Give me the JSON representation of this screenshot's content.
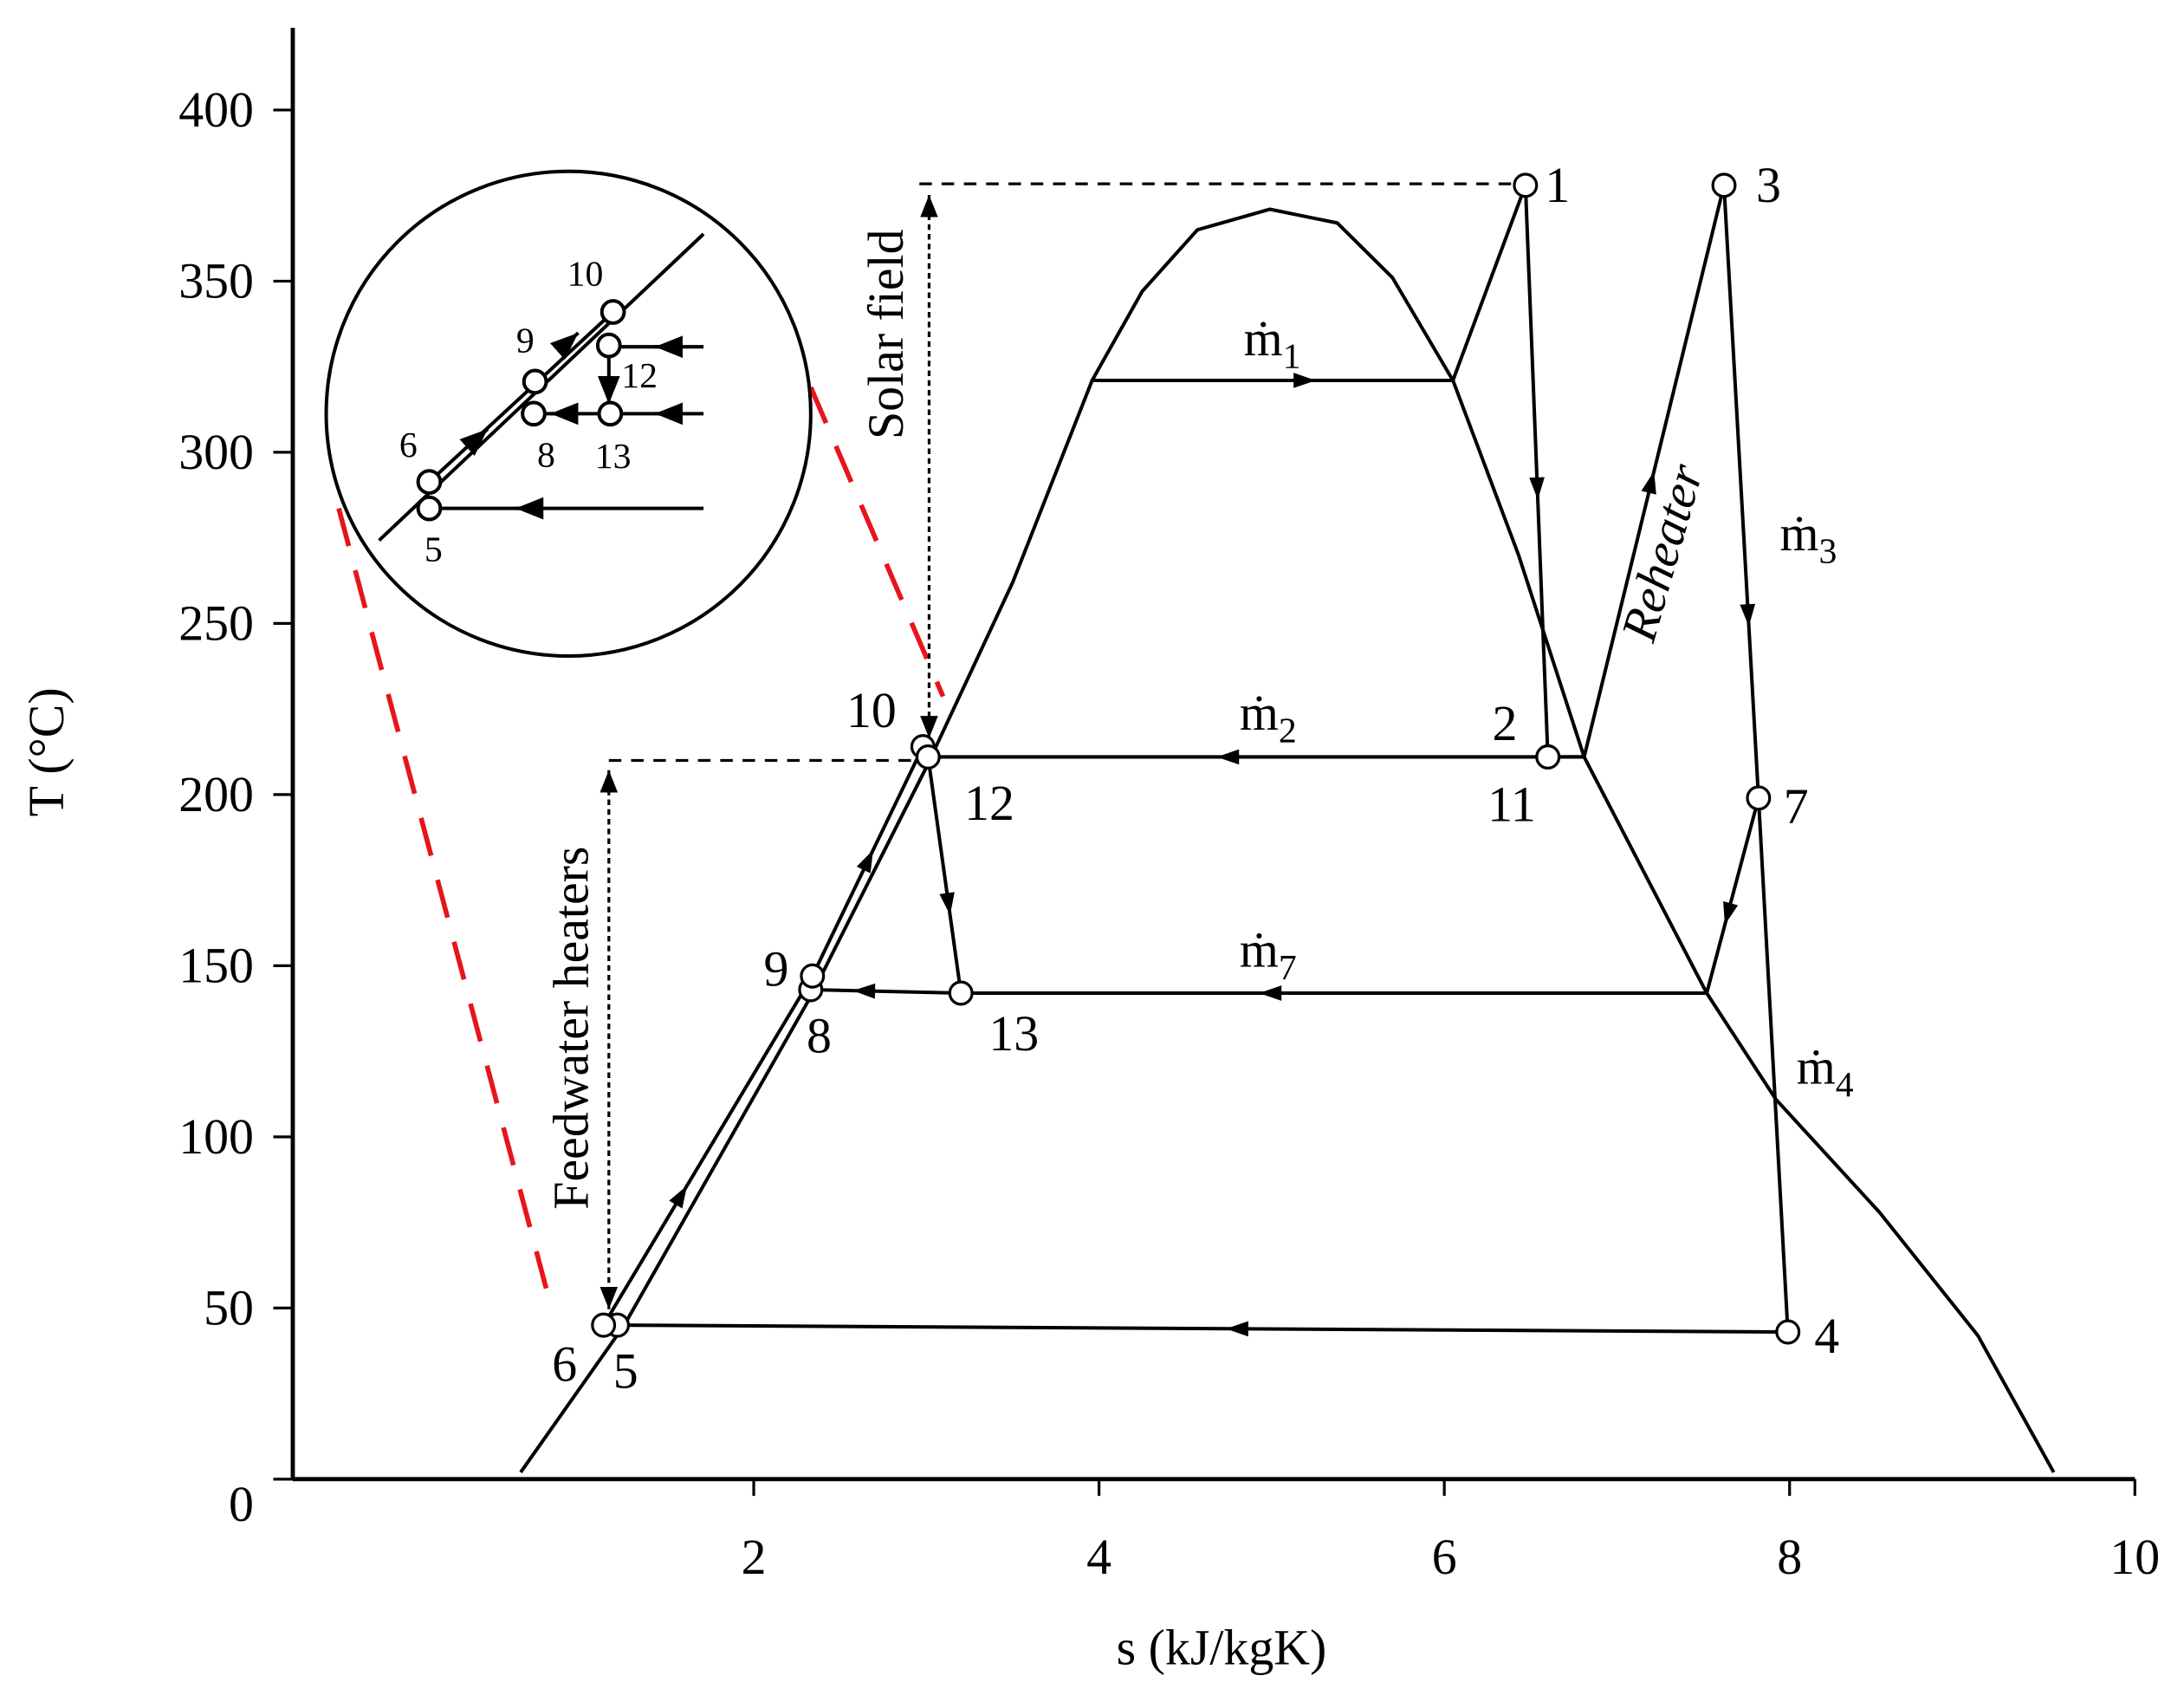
{
  "chart_data": {
    "type": "line",
    "xlabel": "s (kJ/kgK)",
    "ylabel": "T (°C)",
    "xlim": [
      -0.67,
      10
    ],
    "ylim": [
      0,
      424
    ],
    "xticks": [
      2,
      4,
      6,
      8,
      10
    ],
    "yticks": [
      0,
      50,
      100,
      150,
      200,
      250,
      300,
      350,
      400
    ],
    "color": "#000000",
    "lines": [
      {
        "x": [
          0.65,
          1.25,
          2.33,
          3.0,
          3.5,
          3.96,
          4.25,
          4.57,
          4.99,
          5.38,
          5.7,
          6.05,
          6.43,
          6.81,
          7.52,
          7.92,
          8.52,
          9.09,
          9.53
        ],
        "y": [
          2,
          45,
          141,
          208,
          262,
          321,
          347,
          365,
          371,
          367,
          351,
          321,
          270,
          211,
          142,
          111,
          78,
          42,
          2
        ]
      },
      {
        "x": [
          1.13,
          2.34,
          2.98
        ],
        "y": [
          45,
          147,
          214
        ]
      },
      {
        "x": [
          3.96,
          6.05
        ],
        "y": [
          321,
          321
        ]
      },
      {
        "x": [
          6.05,
          6.47
        ],
        "y": [
          321,
          378
        ]
      },
      {
        "x": [
          6.47,
          6.6
        ],
        "y": [
          378,
          211
        ]
      },
      {
        "x": [
          6.6,
          6.81,
          7.62
        ],
        "y": [
          211,
          211,
          378
        ]
      },
      {
        "x": [
          7.62,
          7.82,
          7.99
        ],
        "y": [
          378,
          199,
          43
        ]
      },
      {
        "x": [
          7.82,
          7.52
        ],
        "y": [
          199,
          142
        ]
      },
      {
        "x": [
          7.52,
          3.2,
          2.33
        ],
        "y": [
          142,
          142,
          143
        ]
      },
      {
        "x": [
          6.81,
          3.01
        ],
        "y": [
          211,
          211
        ]
      },
      {
        "x": [
          3.01,
          3.2
        ],
        "y": [
          211,
          142
        ]
      },
      {
        "x": [
          7.99,
          1.21
        ],
        "y": [
          43,
          45
        ]
      }
    ],
    "points": {
      "labels": [
        "1",
        "2",
        "3",
        "4",
        "5",
        "6",
        "7",
        "8",
        "9",
        "10",
        "11",
        "12",
        "13"
      ],
      "x": [
        6.47,
        6.6,
        7.62,
        7.99,
        1.21,
        1.13,
        7.82,
        2.33,
        2.34,
        2.98,
        6.6,
        3.01,
        3.2
      ],
      "y": [
        378,
        211,
        378,
        43,
        45,
        45,
        199,
        143,
        147,
        214,
        211,
        211,
        142
      ]
    },
    "flow_labels": [
      {
        "symbol": "ṁ",
        "sub": "1"
      },
      {
        "symbol": "ṁ",
        "sub": "2"
      },
      {
        "symbol": "ṁ",
        "sub": "3"
      },
      {
        "symbol": "ṁ",
        "sub": "4"
      },
      {
        "symbol": "ṁ",
        "sub": "7"
      }
    ],
    "annotations": [
      "Solar field",
      "Feedwater heaters",
      "Reheater"
    ],
    "inset_labels": [
      "10",
      "9",
      "12",
      "6",
      "8",
      "13",
      "5"
    ]
  }
}
